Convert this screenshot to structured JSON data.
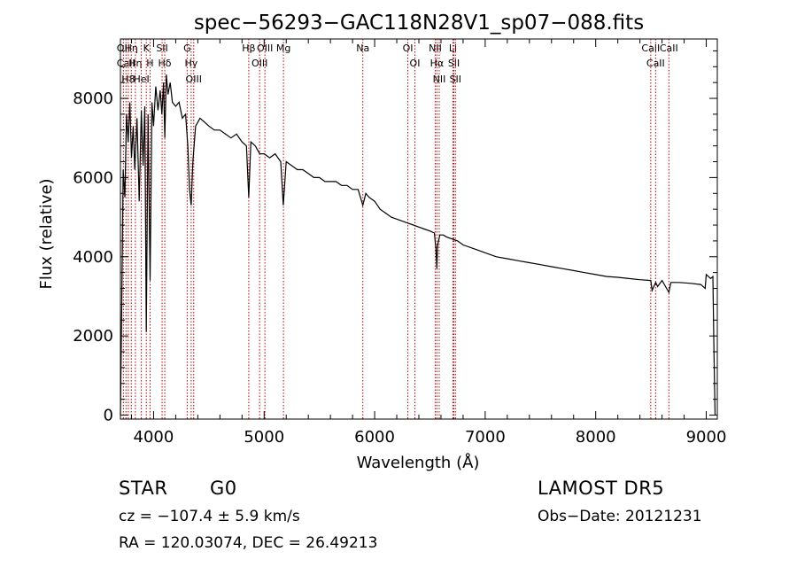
{
  "chart_data": {
    "type": "line",
    "title": "spec−56293−GAC118N28V1_sp07−088.fits",
    "xlabel": "Wavelength (Å)",
    "ylabel": "Flux (relative)",
    "xlim": [
      3700,
      9100
    ],
    "ylim": [
      -100,
      9500
    ],
    "x_ticks": [
      4000,
      5000,
      6000,
      7000,
      8000,
      9000
    ],
    "y_ticks": [
      0,
      2000,
      4000,
      6000,
      8000
    ],
    "x_tick_labels": [
      "4000",
      "5000",
      "6000",
      "7000",
      "8000",
      "9000"
    ],
    "y_tick_labels": [
      "0",
      "2000",
      "4000",
      "6000",
      "8000"
    ],
    "grid": false,
    "series": [
      {
        "color": "#000000",
        "x": [
          3700,
          3712,
          3725,
          3740,
          3755,
          3770,
          3785,
          3800,
          3815,
          3830,
          3850,
          3870,
          3889,
          3905,
          3920,
          3934,
          3950,
          3968,
          3985,
          4000,
          4020,
          4040,
          4060,
          4075,
          4090,
          4101,
          4115,
          4130,
          4150,
          4170,
          4200,
          4230,
          4260,
          4290,
          4310,
          4325,
          4340,
          4355,
          4380,
          4420,
          4460,
          4500,
          4550,
          4600,
          4650,
          4700,
          4750,
          4800,
          4840,
          4861,
          4880,
          4920,
          4960,
          5000,
          5050,
          5100,
          5150,
          5173,
          5183,
          5200,
          5250,
          5300,
          5350,
          5400,
          5450,
          5500,
          5550,
          5600,
          5650,
          5700,
          5750,
          5800,
          5850,
          5893,
          5920,
          5950,
          6000,
          6050,
          6100,
          6150,
          6200,
          6250,
          6300,
          6350,
          6400,
          6450,
          6500,
          6540,
          6555,
          6563,
          6570,
          6590,
          6620,
          6650,
          6700,
          6750,
          6800,
          6900,
          7000,
          7100,
          7200,
          7300,
          7400,
          7500,
          7600,
          7700,
          7800,
          7900,
          8000,
          8100,
          8200,
          8300,
          8400,
          8498,
          8510,
          8542,
          8560,
          8600,
          8662,
          8680,
          8750,
          8850,
          8950,
          8990,
          9000,
          9020,
          9040,
          9060,
          9070,
          9080
        ],
        "y": [
          0,
          2800,
          6200,
          5500,
          7600,
          6900,
          7900,
          6500,
          7300,
          6200,
          7500,
          5400,
          7700,
          6300,
          7800,
          2100,
          7600,
          3400,
          7900,
          7300,
          8300,
          7700,
          8200,
          7600,
          8400,
          7000,
          8600,
          8100,
          8400,
          7900,
          7800,
          7900,
          7500,
          7600,
          6800,
          5700,
          5300,
          6400,
          7300,
          7500,
          7400,
          7300,
          7200,
          7200,
          7100,
          7000,
          7100,
          6900,
          6800,
          5500,
          6900,
          6800,
          6600,
          6600,
          6500,
          6600,
          6400,
          5300,
          5700,
          6400,
          6300,
          6200,
          6200,
          6100,
          6000,
          6000,
          5900,
          5900,
          5900,
          5800,
          5800,
          5700,
          5700,
          5300,
          5600,
          5500,
          5400,
          5200,
          5100,
          5000,
          4950,
          4900,
          4850,
          4800,
          4750,
          4700,
          4650,
          4600,
          4200,
          3700,
          4300,
          4550,
          4550,
          4500,
          4450,
          4400,
          4300,
          4200,
          4100,
          4000,
          3950,
          3900,
          3850,
          3800,
          3750,
          3700,
          3650,
          3600,
          3550,
          3500,
          3480,
          3450,
          3420,
          3400,
          3150,
          3350,
          3250,
          3400,
          3100,
          3350,
          3350,
          3330,
          3300,
          3200,
          3550,
          3500,
          3450,
          3500,
          1500,
          0
        ]
      }
    ],
    "lines": [
      {
        "x": 3727,
        "labels": [
          "OII"
        ]
      },
      {
        "x": 3750,
        "labels": [
          "CaII"
        ]
      },
      {
        "x": 3771,
        "labels": [
          "H8"
        ]
      },
      {
        "x": 3798,
        "labels": [
          "Hη"
        ]
      },
      {
        "x": 3835,
        "labels": [
          "Hη"
        ]
      },
      {
        "x": 3889,
        "labels": [
          "HeI"
        ]
      },
      {
        "x": 3934,
        "labels": [
          "K"
        ]
      },
      {
        "x": 3968,
        "labels": [
          "H"
        ]
      },
      {
        "x": 4101,
        "labels": [
          "Hδ"
        ]
      },
      {
        "x": 4077,
        "labels": [
          "SII"
        ]
      },
      {
        "x": 4304,
        "labels": [
          "G"
        ]
      },
      {
        "x": 4340,
        "labels": [
          "Hγ"
        ]
      },
      {
        "x": 4363,
        "labels": [
          "OIII"
        ]
      },
      {
        "x": 4861,
        "labels": [
          "Hβ"
        ]
      },
      {
        "x": 4959,
        "labels": [
          "OIII"
        ]
      },
      {
        "x": 5007,
        "labels": [
          "OIII"
        ]
      },
      {
        "x": 5175,
        "labels": [
          "Mg"
        ]
      },
      {
        "x": 5893,
        "labels": [
          "Na"
        ]
      },
      {
        "x": 6300,
        "labels": [
          "OI"
        ]
      },
      {
        "x": 6364,
        "labels": [
          "OI"
        ]
      },
      {
        "x": 6548,
        "labels": [
          "NII"
        ]
      },
      {
        "x": 6563,
        "labels": [
          "Hα"
        ]
      },
      {
        "x": 6584,
        "labels": [
          "NII"
        ]
      },
      {
        "x": 6708,
        "labels": [
          "Li"
        ]
      },
      {
        "x": 6717,
        "labels": [
          "SII"
        ]
      },
      {
        "x": 6731,
        "labels": [
          "SII"
        ]
      },
      {
        "x": 8498,
        "labels": [
          "CaII"
        ]
      },
      {
        "x": 8542,
        "labels": [
          "CaII"
        ]
      },
      {
        "x": 8662,
        "labels": [
          "CaII"
        ]
      }
    ]
  },
  "line_color": "#c00000",
  "info": {
    "object_class": "STAR",
    "subclass": "G0",
    "survey": "LAMOST DR5",
    "redshift": "cz = −107.4 ± 5.9 km/s",
    "obs_date": "Obs−Date: 20121231",
    "coords": "RA = 120.03074, DEC =  26.49213"
  }
}
